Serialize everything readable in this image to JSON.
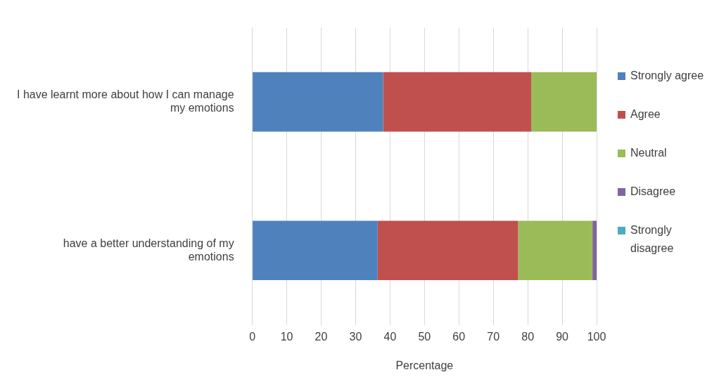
{
  "chart_data": {
    "type": "bar",
    "orientation": "horizontal",
    "stacked": true,
    "xlabel": "Percentage",
    "categories": [
      "I have learnt more about how I can manage my emotions",
      "have a better understanding of my emotions"
    ],
    "series": [
      {
        "name": "Strongly agree",
        "color": "#4f81bd",
        "values": [
          38,
          36.4
        ]
      },
      {
        "name": "Agree",
        "color": "#c0504d",
        "values": [
          43,
          40.8
        ]
      },
      {
        "name": "Neutral",
        "color": "#9bbb59",
        "values": [
          19,
          21.6
        ]
      },
      {
        "name": "Disagree",
        "color": "#8064a2",
        "values": [
          0,
          1.2
        ]
      },
      {
        "name": "Strongly disagree",
        "color": "#4bacc6",
        "values": [
          0,
          0
        ]
      }
    ],
    "xlim": [
      0,
      100
    ],
    "xticks": [
      0,
      10,
      20,
      30,
      40,
      50,
      60,
      70,
      80,
      90,
      100
    ],
    "grid": "x",
    "legend": "right"
  }
}
